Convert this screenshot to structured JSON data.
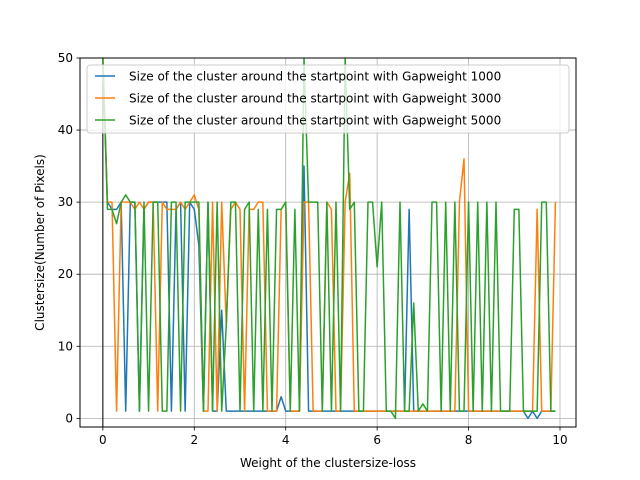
{
  "chart_data": {
    "type": "line",
    "xlabel": "Weight of the clustersize-loss",
    "ylabel": "Clustersize(Number of Pixels)",
    "xlim": [
      -0.5,
      10.35
    ],
    "ylim": [
      -1.2,
      50
    ],
    "xticks": [
      0,
      2,
      4,
      6,
      8,
      10
    ],
    "yticks": [
      0,
      10,
      20,
      30,
      40,
      50
    ],
    "grid": true,
    "legend_position": "top-right",
    "series": [
      {
        "name": "Size of the cluster around the startpoint with Gapweight 1000",
        "color": "#1f77b4",
        "x": [
          0.0,
          0.1,
          0.2,
          0.3,
          0.4,
          0.5,
          0.6,
          0.7,
          0.8,
          0.9,
          1.0,
          1.1,
          1.2,
          1.3,
          1.4,
          1.5,
          1.6,
          1.7,
          1.8,
          1.9,
          2.0,
          2.1,
          2.2,
          2.3,
          2.4,
          2.5,
          2.6,
          2.7,
          2.8,
          2.9,
          3.0,
          3.1,
          3.2,
          3.3,
          3.4,
          3.5,
          3.6,
          3.7,
          3.8,
          3.9,
          4.0,
          4.1,
          4.2,
          4.3,
          4.4,
          4.5,
          4.6,
          4.7,
          4.8,
          4.9,
          5.0,
          5.1,
          5.2,
          5.3,
          5.4,
          5.5,
          5.6,
          5.7,
          5.8,
          5.9,
          6.0,
          6.1,
          6.2,
          6.3,
          6.4,
          6.5,
          6.6,
          6.7,
          6.8,
          6.9,
          7.0,
          7.1,
          7.2,
          7.3,
          7.4,
          7.5,
          7.6,
          7.7,
          7.8,
          7.9,
          8.0,
          8.1,
          8.2,
          8.3,
          8.4,
          8.5,
          8.6,
          8.7,
          8.8,
          8.9,
          9.0,
          9.1,
          9.2,
          9.3,
          9.4,
          9.5,
          9.6,
          9.7,
          9.8,
          9.9
        ],
        "y": [
          50,
          30,
          29,
          29,
          30,
          1,
          30,
          30,
          1,
          29,
          30,
          30,
          30,
          30,
          30,
          1,
          29,
          30,
          1,
          30,
          29,
          24,
          1,
          30,
          1,
          1,
          15,
          1,
          1,
          1,
          1,
          1,
          1,
          1,
          1,
          1,
          1,
          1,
          1,
          3,
          1,
          1,
          1,
          1,
          35,
          1,
          1,
          1,
          1,
          1,
          1,
          1,
          1,
          1,
          1,
          1,
          1,
          1,
          1,
          1,
          1,
          1,
          1,
          1,
          1,
          1,
          1,
          29,
          1,
          1,
          1,
          1,
          1,
          1,
          1,
          1,
          1,
          1,
          1,
          1,
          1,
          1,
          1,
          1,
          1,
          1,
          1,
          1,
          1,
          1,
          1,
          1,
          1,
          0,
          1,
          0,
          1,
          1,
          1,
          1
        ]
      },
      {
        "name": "Size of the cluster around the startpoint with Gapweight 3000",
        "color": "#ff7f0e",
        "x": [
          0.0,
          0.1,
          0.2,
          0.3,
          0.4,
          0.5,
          0.6,
          0.7,
          0.8,
          0.9,
          1.0,
          1.1,
          1.2,
          1.3,
          1.4,
          1.5,
          1.6,
          1.7,
          1.8,
          1.9,
          2.0,
          2.1,
          2.2,
          2.3,
          2.4,
          2.5,
          2.6,
          2.7,
          2.8,
          2.9,
          3.0,
          3.1,
          3.2,
          3.3,
          3.4,
          3.5,
          3.6,
          3.7,
          3.8,
          3.9,
          4.0,
          4.1,
          4.2,
          4.3,
          4.4,
          4.5,
          4.6,
          4.7,
          4.8,
          4.9,
          5.0,
          5.1,
          5.2,
          5.3,
          5.4,
          5.5,
          5.6,
          5.7,
          5.8,
          5.9,
          6.0,
          6.1,
          6.2,
          6.3,
          6.4,
          6.5,
          6.6,
          6.7,
          6.8,
          6.9,
          7.0,
          7.1,
          7.2,
          7.3,
          7.4,
          7.5,
          7.6,
          7.7,
          7.8,
          7.9,
          8.0,
          8.1,
          8.2,
          8.3,
          8.4,
          8.5,
          8.6,
          8.7,
          8.8,
          8.9,
          9.0,
          9.1,
          9.2,
          9.3,
          9.4,
          9.5,
          9.6,
          9.7,
          9.8,
          9.9
        ],
        "y": [
          50,
          30,
          30,
          1,
          30,
          30,
          30,
          29,
          30,
          29,
          30,
          30,
          1,
          30,
          29,
          29,
          29,
          30,
          29,
          30,
          31,
          29,
          1,
          1,
          30,
          1,
          30,
          13,
          29,
          30,
          29,
          1,
          29,
          29,
          30,
          30,
          1,
          1,
          1,
          29,
          30,
          1,
          1,
          1,
          30,
          30,
          1,
          1,
          1,
          30,
          29,
          1,
          1,
          30,
          34,
          1,
          1,
          1,
          1,
          1,
          1,
          1,
          1,
          1,
          1,
          1,
          1,
          1,
          1,
          1,
          1,
          1,
          1,
          1,
          1,
          1,
          1,
          1,
          30,
          36,
          1,
          1,
          1,
          1,
          1,
          1,
          1,
          1,
          1,
          1,
          1,
          1,
          1,
          1,
          1,
          29,
          1,
          1,
          1,
          30
        ]
      },
      {
        "name": "Size of the cluster around the startpoint with Gapweight 5000",
        "color": "#2ca02c",
        "x": [
          0.0,
          0.1,
          0.2,
          0.3,
          0.4,
          0.5,
          0.6,
          0.7,
          0.8,
          0.9,
          1.0,
          1.1,
          1.2,
          1.3,
          1.4,
          1.5,
          1.6,
          1.7,
          1.8,
          1.9,
          2.0,
          2.1,
          2.2,
          2.3,
          2.4,
          2.5,
          2.6,
          2.7,
          2.8,
          2.9,
          3.0,
          3.1,
          3.2,
          3.3,
          3.4,
          3.5,
          3.6,
          3.7,
          3.8,
          3.9,
          4.0,
          4.1,
          4.2,
          4.3,
          4.4,
          4.5,
          4.6,
          4.7,
          4.8,
          4.9,
          5.0,
          5.1,
          5.2,
          5.3,
          5.4,
          5.5,
          5.6,
          5.7,
          5.8,
          5.9,
          6.0,
          6.1,
          6.2,
          6.3,
          6.4,
          6.5,
          6.6,
          6.7,
          6.8,
          6.9,
          7.0,
          7.1,
          7.2,
          7.3,
          7.4,
          7.5,
          7.6,
          7.7,
          7.8,
          7.9,
          8.0,
          8.1,
          8.2,
          8.3,
          8.4,
          8.5,
          8.6,
          8.7,
          8.8,
          8.9,
          9.0,
          9.1,
          9.2,
          9.3,
          9.4,
          9.5,
          9.6,
          9.7,
          9.8,
          9.9
        ],
        "y": [
          50,
          29,
          29,
          27,
          30,
          31,
          30,
          30,
          1,
          30,
          1,
          30,
          30,
          1,
          1,
          30,
          30,
          1,
          30,
          30,
          30,
          30,
          1,
          30,
          1,
          30,
          1,
          13,
          30,
          30,
          1,
          29,
          30,
          1,
          29,
          1,
          29,
          1,
          29,
          29,
          30,
          1,
          29,
          1,
          50,
          30,
          30,
          30,
          1,
          30,
          1,
          30,
          1,
          50,
          29,
          30,
          1,
          1,
          30,
          30,
          21,
          30,
          1,
          1,
          0,
          30,
          1,
          1,
          16,
          1,
          2,
          1,
          30,
          30,
          1,
          30,
          1,
          30,
          1,
          1,
          30,
          1,
          30,
          1,
          30,
          1,
          30,
          1,
          1,
          1,
          29,
          29,
          1,
          1,
          1,
          1,
          30,
          30,
          1,
          1
        ]
      }
    ]
  }
}
